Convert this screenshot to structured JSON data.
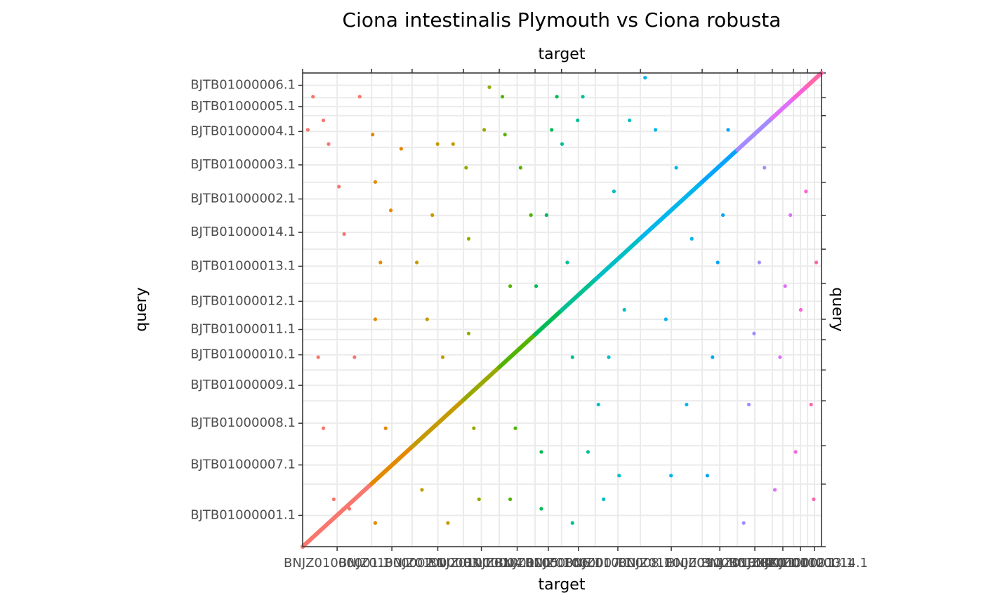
{
  "chart_data": {
    "type": "scatter",
    "title": "Ciona intestinalis Plymouth vs Ciona robusta",
    "xlabel": "target",
    "x2label": "target",
    "ylabel": "query",
    "y2label": "query",
    "xlim": [
      0,
      100
    ],
    "ylim": [
      0,
      100
    ],
    "grid": true,
    "x_chromosomes": [
      "BNJZ01000001.1",
      "BNJZ01000002.1",
      "BNJZ01000003.1",
      "BNJZ01000004.1",
      "BNJZ01000005.1",
      "BNJZ01000006.1",
      "BNJZ01000007.1",
      "BNJZ01000008.1",
      "BNJZ01000009.1",
      "BNJZ01000010.1",
      "BNJZ01000011.1",
      "BNJZ01000012.1",
      "BNJZ01000013.1",
      "BNJZ01000014.1"
    ],
    "x_boundaries": [
      0,
      13.3,
      21.1,
      31.0,
      37.9,
      44.8,
      49.9,
      56.4,
      65.1,
      77.0,
      83.8,
      90.5,
      94.6,
      97.3,
      100
    ],
    "y_chromosomes": [
      "BJTB01000001.1",
      "BJTB01000007.1",
      "BJTB01000008.1",
      "BJTB01000009.1",
      "BJTB01000010.1",
      "BJTB01000011.1",
      "BJTB01000012.1",
      "BJTB01000013.1",
      "BJTB01000014.1",
      "BJTB01000002.1",
      "BJTB01000003.1",
      "BJTB01000004.1",
      "BJTB01000005.1",
      "BJTB01000006.1"
    ],
    "y_boundaries": [
      0,
      13.2,
      21.3,
      30.8,
      37.3,
      43.7,
      48.0,
      55.6,
      62.8,
      69.9,
      76.9,
      84.3,
      91.0,
      94.8,
      100
    ],
    "series": [
      {
        "color": "#F8766D",
        "diagonal_x": [
          0,
          13.3
        ],
        "diagonal_y": [
          0,
          13.3
        ],
        "x": [
          2,
          4,
          5,
          3,
          4,
          6,
          8,
          10,
          7,
          11,
          1,
          9
        ],
        "y": [
          95,
          90,
          85,
          40,
          25,
          10,
          66,
          40,
          76,
          95,
          88,
          8
        ]
      },
      {
        "color": "#E38900",
        "diagonal_x": [
          13.3,
          21.1
        ],
        "diagonal_y": [
          13.3,
          21.1
        ],
        "x": [
          13.5,
          14,
          15,
          14,
          16,
          14,
          17,
          19
        ],
        "y": [
          87,
          77,
          60,
          48,
          25,
          5,
          71,
          84
        ]
      },
      {
        "color": "#C49A00",
        "diagonal_x": [
          21.1,
          31.0
        ],
        "diagonal_y": [
          21.1,
          31.0
        ],
        "x": [
          22,
          25,
          26,
          24,
          27,
          29,
          28,
          23
        ],
        "y": [
          60,
          70,
          85,
          48,
          40,
          85,
          5,
          12
        ]
      },
      {
        "color": "#99A800",
        "diagonal_x": [
          31.0,
          37.9
        ],
        "diagonal_y": [
          31.0,
          37.9
        ],
        "x": [
          31.5,
          32,
          33,
          34,
          35,
          36,
          32
        ],
        "y": [
          80,
          45,
          25,
          10,
          88,
          97,
          65
        ]
      },
      {
        "color": "#53B400",
        "diagonal_x": [
          37.9,
          44.8
        ],
        "diagonal_y": [
          37.9,
          44.8
        ],
        "x": [
          38.5,
          39,
          40,
          41,
          40,
          42,
          44
        ],
        "y": [
          95,
          87,
          55,
          25,
          10,
          80,
          70
        ]
      },
      {
        "color": "#00BC56",
        "diagonal_x": [
          44.8,
          49.9
        ],
        "diagonal_y": [
          44.8,
          49.9
        ],
        "x": [
          45,
          46,
          47,
          48,
          49,
          46
        ],
        "y": [
          55,
          20,
          70,
          88,
          95,
          8
        ]
      },
      {
        "color": "#00C094",
        "diagonal_x": [
          49.9,
          56.4
        ],
        "diagonal_y": [
          49.9,
          56.4
        ],
        "x": [
          51,
          52,
          53,
          54,
          55,
          52,
          50
        ],
        "y": [
          60,
          40,
          90,
          95,
          20,
          5,
          85
        ]
      },
      {
        "color": "#00BFC4",
        "diagonal_x": [
          56.4,
          65.1
        ],
        "diagonal_y": [
          56.4,
          65.1
        ],
        "x": [
          57,
          58,
          59,
          60,
          62,
          63,
          61
        ],
        "y": [
          30,
          10,
          40,
          75,
          50,
          90,
          15
        ]
      },
      {
        "color": "#00B6EB",
        "diagonal_x": [
          65.1,
          77.0
        ],
        "diagonal_y": [
          65.1,
          77.0
        ],
        "x": [
          66,
          68,
          70,
          72,
          74,
          71,
          75
        ],
        "y": [
          99,
          88,
          48,
          80,
          30,
          15,
          65
        ]
      },
      {
        "color": "#06A4FF",
        "diagonal_x": [
          77.0,
          83.8
        ],
        "diagonal_y": [
          77.0,
          83.8
        ],
        "x": [
          78,
          80,
          82,
          79,
          81
        ],
        "y": [
          15,
          60,
          88,
          40,
          70
        ]
      },
      {
        "color": "#A58AFF",
        "diagonal_x": [
          83.8,
          90.5
        ],
        "diagonal_y": [
          83.8,
          90.5
        ],
        "x": [
          85,
          86,
          88,
          87,
          89
        ],
        "y": [
          5,
          30,
          60,
          45,
          80
        ]
      },
      {
        "color": "#DF70F8",
        "diagonal_x": [
          90.5,
          94.6
        ],
        "diagonal_y": [
          90.5,
          94.6
        ],
        "x": [
          91,
          92,
          93,
          94
        ],
        "y": [
          12,
          40,
          55,
          70
        ]
      },
      {
        "color": "#FB61D7",
        "diagonal_x": [
          94.6,
          97.3
        ],
        "diagonal_y": [
          94.6,
          97.3
        ],
        "x": [
          95,
          96,
          97
        ],
        "y": [
          20,
          50,
          75
        ]
      },
      {
        "color": "#FF66A8",
        "diagonal_x": [
          97.3,
          100
        ],
        "diagonal_y": [
          97.3,
          100
        ],
        "x": [
          98,
          99,
          98.5
        ],
        "y": [
          30,
          60,
          10
        ]
      }
    ]
  }
}
